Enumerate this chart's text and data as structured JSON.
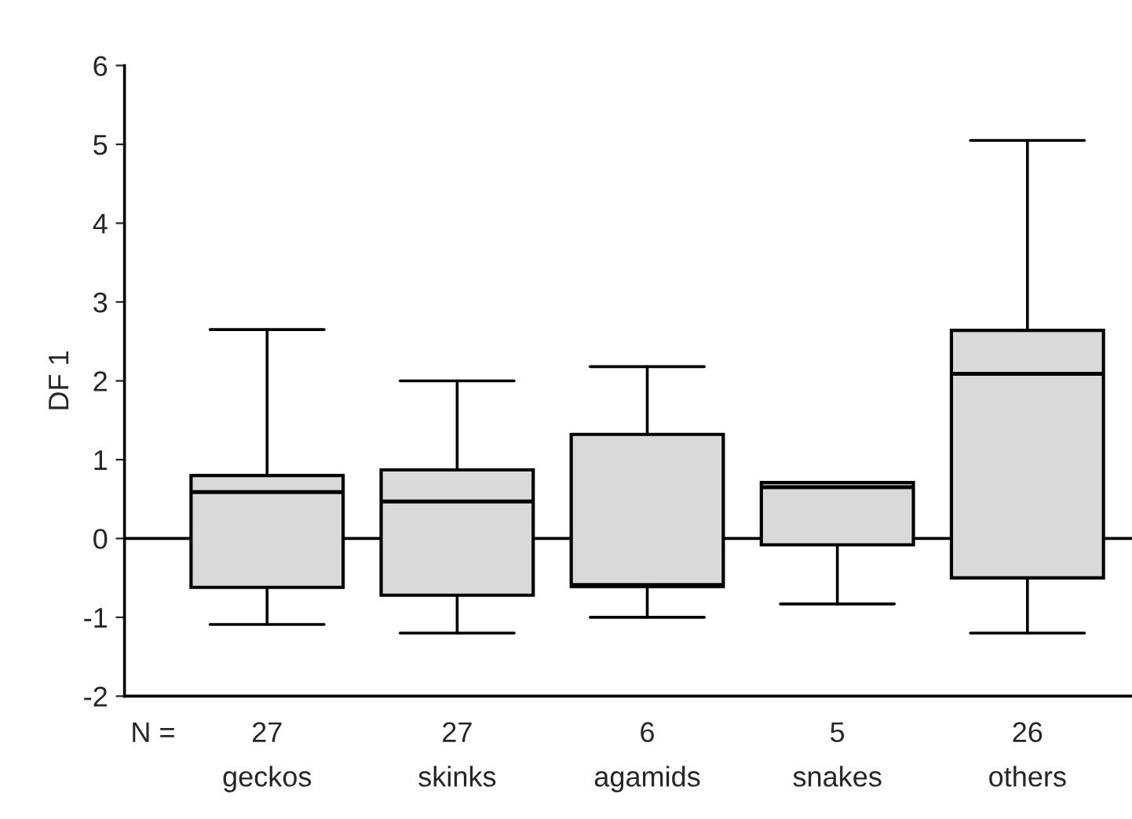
{
  "chart_data": {
    "type": "box",
    "ylabel": "DF 1",
    "categories": [
      "geckos",
      "skinks",
      "agamids",
      "snakes",
      "others"
    ],
    "boxes": [
      {
        "low": -1.09,
        "q1": -0.62,
        "median": 0.59,
        "q3": 0.8,
        "high": 2.65
      },
      {
        "low": -1.2,
        "q1": -0.72,
        "median": 0.47,
        "q3": 0.87,
        "high": 2.0
      },
      {
        "low": -1.0,
        "q1": -0.61,
        "median": -0.59,
        "q3": 1.32,
        "high": 2.18
      },
      {
        "low": -0.83,
        "q1": -0.08,
        "median": 0.65,
        "q3": 0.71,
        "high": 0.71
      },
      {
        "low": -1.2,
        "q1": -0.5,
        "median": 2.09,
        "q3": 2.64,
        "high": 5.05
      }
    ],
    "color": "#d9d9d9",
    "ylim": [
      -2,
      6
    ],
    "yticks": [
      -2,
      -1,
      0,
      1,
      2,
      3,
      4,
      5,
      6
    ],
    "ref_lines": [
      {
        "axis": "y",
        "value": 0,
        "color": "#000000"
      }
    ],
    "annotations": [
      "N =",
      "27",
      "27",
      "6",
      "5",
      "26"
    ],
    "grid": false
  }
}
